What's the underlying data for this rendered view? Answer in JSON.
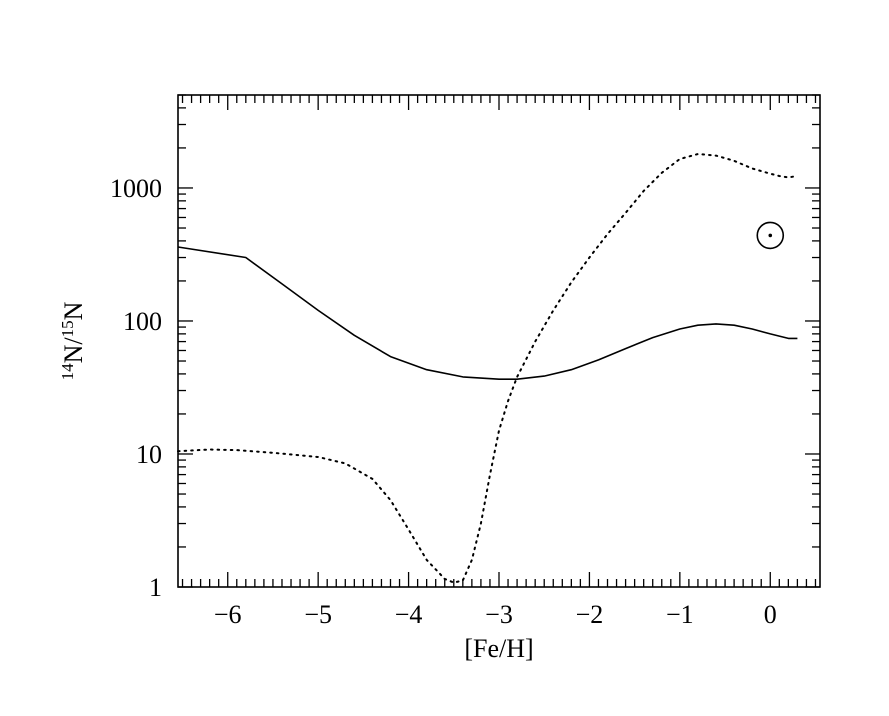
{
  "chart_data": {
    "type": "line",
    "title": "",
    "xlabel": "[Fe/H]",
    "ylabel": {
      "sup1": "14",
      "n1": "N/",
      "sup2": "15",
      "n2": "N"
    },
    "xlim": [
      -6.55,
      0.55
    ],
    "ylim": [
      1,
      5000
    ],
    "yscale": "log",
    "xticks": [
      -6,
      -5,
      -4,
      -3,
      -2,
      -1,
      0
    ],
    "xtick_labels": [
      "−6",
      "−5",
      "−4",
      "−3",
      "−2",
      "−1",
      "0"
    ],
    "yticks": [
      1,
      10,
      100,
      1000
    ],
    "ytick_labels": [
      "1",
      "10",
      "100",
      "1000"
    ],
    "grid": false,
    "series": [
      {
        "style": "solid",
        "x": [
          -6.55,
          -5.8,
          -5.4,
          -5.0,
          -4.6,
          -4.2,
          -3.8,
          -3.4,
          -3.0,
          -2.8,
          -2.5,
          -2.2,
          -1.9,
          -1.6,
          -1.3,
          -1.0,
          -0.8,
          -0.6,
          -0.4,
          -0.2,
          0.0,
          0.1,
          0.2,
          0.3
        ],
        "y": [
          360,
          300,
          190,
          120,
          78,
          54,
          43,
          38,
          36.5,
          36.5,
          38.5,
          43,
          51,
          62,
          75,
          87,
          93,
          95,
          93,
          87,
          80,
          77,
          74,
          74
        ]
      },
      {
        "style": "dotted",
        "x": [
          -6.55,
          -6.2,
          -5.9,
          -5.5,
          -5.0,
          -4.7,
          -4.4,
          -4.2,
          -4.0,
          -3.8,
          -3.6,
          -3.5,
          -3.4,
          -3.3,
          -3.2,
          -3.1,
          -3.0,
          -2.9,
          -2.8,
          -2.6,
          -2.4,
          -2.2,
          -2.0,
          -1.8,
          -1.6,
          -1.4,
          -1.2,
          -1.0,
          -0.8,
          -0.6,
          -0.4,
          -0.2,
          0.0,
          0.1,
          0.2,
          0.3
        ],
        "y": [
          10.5,
          10.8,
          10.7,
          10.2,
          9.5,
          8.5,
          6.5,
          4.5,
          2.7,
          1.6,
          1.15,
          1.08,
          1.12,
          1.6,
          3.0,
          7.0,
          15,
          25,
          38,
          70,
          120,
          195,
          300,
          450,
          650,
          950,
          1300,
          1650,
          1800,
          1750,
          1600,
          1400,
          1280,
          1230,
          1200,
          1230
        ]
      }
    ],
    "annotations": [
      {
        "type": "sun-symbol",
        "x": 0.0,
        "y": 440
      }
    ]
  }
}
